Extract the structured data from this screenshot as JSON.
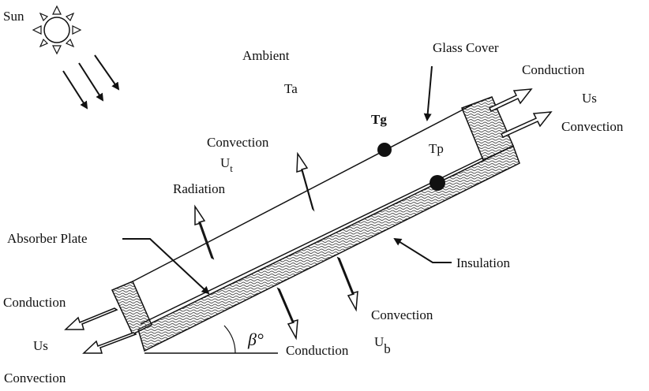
{
  "labels": {
    "sun": "Sun",
    "ambient": "Ambient",
    "ta": "Ta",
    "glass_cover": "Glass Cover",
    "tg": "Tg",
    "tp": "Tp",
    "top_right_conduction": "Conduction",
    "top_right_us": "Us",
    "top_right_convection": "Convection",
    "top_convection": "Convection",
    "ut": "U",
    "ut_sub": "t",
    "radiation": "Radiation",
    "absorber_plate": "Absorber Plate",
    "insulation": "Insulation",
    "left_conduction": "Conduction",
    "left_us": "Us",
    "left_convection": "Convection",
    "bottom_convection": "Convection",
    "ub": "U",
    "ub_sub": "b",
    "bottom_conduction": "Conduction",
    "beta": "β°"
  },
  "colors": {
    "ink": "#111111",
    "background": "#ffffff",
    "hatch": "#555555"
  }
}
